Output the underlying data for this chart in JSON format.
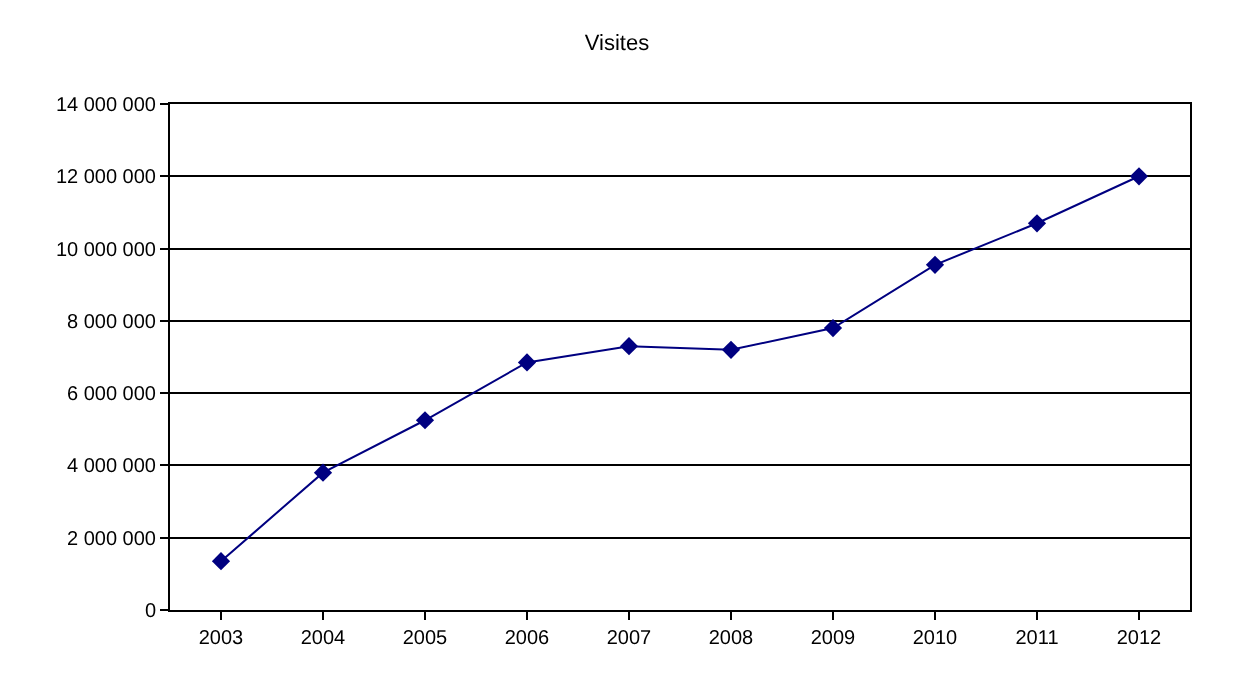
{
  "chart_data": {
    "type": "line",
    "title": "Visites",
    "categories": [
      "2003",
      "2004",
      "2005",
      "2006",
      "2007",
      "2008",
      "2009",
      "2010",
      "2011",
      "2012"
    ],
    "series": [
      {
        "color": "#000080",
        "values": [
          1350000,
          3800000,
          5250000,
          6850000,
          7300000,
          7200000,
          7800000,
          9550000,
          10700000,
          12000000
        ]
      }
    ],
    "ylim": [
      0,
      14000000
    ],
    "yticks": [
      {
        "value": 0,
        "label": "0"
      },
      {
        "value": 2000000,
        "label": "2 000 000"
      },
      {
        "value": 4000000,
        "label": "4 000 000"
      },
      {
        "value": 6000000,
        "label": "6 000 000"
      },
      {
        "value": 8000000,
        "label": "8 000 000"
      },
      {
        "value": 10000000,
        "label": "10 000 000"
      },
      {
        "value": 12000000,
        "label": "12 000 000"
      },
      {
        "value": 14000000,
        "label": "14 000 000"
      }
    ],
    "grid": "y",
    "legend": false,
    "marker": "diamond",
    "line_style": "solid"
  }
}
